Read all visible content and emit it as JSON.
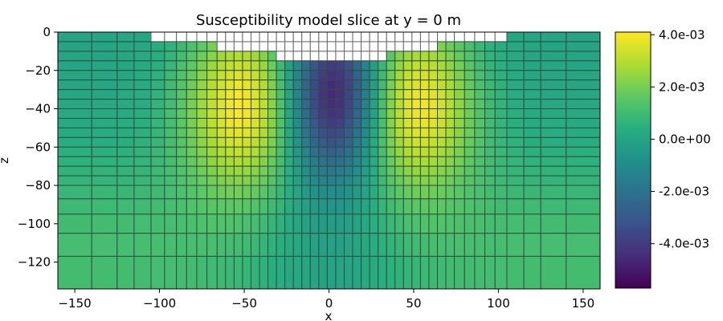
{
  "chart_data": {
    "type": "heatmap",
    "title": "Susceptibility model slice at y = 0 m",
    "xlabel": "x",
    "ylabel": "z",
    "xlim": [
      -160,
      160
    ],
    "ylim": [
      -134,
      0
    ],
    "xticks": [
      -150,
      -100,
      -50,
      0,
      50,
      100,
      150
    ],
    "yticks": [
      0,
      -20,
      -40,
      -60,
      -80,
      -100,
      -120
    ],
    "colormap": "viridis",
    "colorbar": {
      "vmin": -0.0057,
      "vmax": 0.0041,
      "ticks": [
        0.004,
        0.002,
        0.0,
        -0.002,
        -0.004
      ],
      "tick_labels": [
        "4.0e-03",
        "2.0e-03",
        "0.0e+00",
        "-2.0e-03",
        "-4.0e-03"
      ]
    },
    "mesh": {
      "x_edges": [
        -160,
        -140,
        -125,
        -115,
        -105,
        -97,
        -90,
        -84,
        -78,
        -72,
        -66,
        -61,
        -56,
        -51,
        -46,
        -41,
        -36,
        -31,
        -26,
        -21,
        -16,
        -11,
        -6,
        -1,
        4,
        9,
        14,
        19,
        24,
        29,
        34,
        39,
        44,
        49,
        54,
        59,
        64,
        69,
        74,
        80,
        86,
        92,
        98,
        105,
        115,
        125,
        140,
        160
      ],
      "z_edges": [
        0,
        -5,
        -10,
        -15,
        -20,
        -25,
        -30,
        -35,
        -40,
        -45,
        -50,
        -55,
        -60,
        -65,
        -70,
        -75,
        -80,
        -87,
        -95,
        -105,
        -117,
        -134
      ],
      "air_cells": {
        "note": "white unfilled cells above topography",
        "surface_z": [
          {
            "x_range": [
              -160,
              -105
            ],
            "z": 0
          },
          {
            "x_range": [
              -105,
              -66
            ],
            "z": -5
          },
          {
            "x_range": [
              -66,
              -31
            ],
            "z": -10
          },
          {
            "x_range": [
              -31,
              34
            ],
            "z": -15
          },
          {
            "x_range": [
              34,
              64
            ],
            "z": -10
          },
          {
            "x_range": [
              64,
              105
            ],
            "z": -5
          },
          {
            "x_range": [
              105,
              160
            ],
            "z": 0
          }
        ]
      }
    },
    "anomalies": [
      {
        "sign": "positive",
        "center_x": -50,
        "center_z": -37,
        "peak_value": 0.0041
      },
      {
        "sign": "positive",
        "center_x": 50,
        "center_z": -37,
        "peak_value": 0.0041
      },
      {
        "sign": "negative",
        "center_x": 3,
        "center_z": -33,
        "peak_value": -0.0057
      }
    ]
  }
}
